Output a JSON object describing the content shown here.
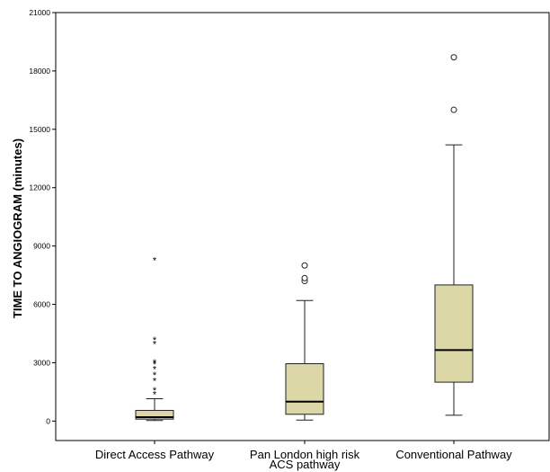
{
  "chart_data": {
    "type": "box",
    "title": "",
    "xlabel": "",
    "ylabel": "TIME TO ANGIOGRAM (minutes)",
    "ylim": [
      -1000,
      21000
    ],
    "yticks": [
      0,
      3000,
      6000,
      9000,
      12000,
      15000,
      18000,
      21000
    ],
    "grid": false,
    "colors": {
      "box_fill": "#dcd7a6",
      "stroke": "#222222",
      "plot_bg": "#ffffff"
    },
    "categories": [
      {
        "label": "Direct Access Pathway",
        "label_lines": [
          "Direct Access Pathway"
        ]
      },
      {
        "label": "Pan London high risk ACS pathway",
        "label_lines": [
          "Pan London high risk",
          "ACS pathway"
        ]
      },
      {
        "label": "Conventional Pathway",
        "label_lines": [
          "Conventional Pathway"
        ]
      }
    ],
    "boxes": [
      {
        "whisker_low": 30,
        "q1": 100,
        "median": 200,
        "q3": 550,
        "whisker_high": 1150,
        "outliers_circle": [],
        "outliers_star": [
          1400,
          1600,
          2100,
          2400,
          2700,
          2950,
          3050,
          4000,
          4200,
          8300
        ]
      },
      {
        "whisker_low": 50,
        "q1": 350,
        "median": 1000,
        "q3": 2950,
        "whisker_high": 6200,
        "outliers_circle": [
          7200,
          7350,
          8000
        ],
        "outliers_star": []
      },
      {
        "whisker_low": 300,
        "q1": 2000,
        "median": 3650,
        "q3": 7000,
        "whisker_high": 14200,
        "outliers_circle": [
          16000,
          18700
        ],
        "outliers_star": []
      }
    ]
  }
}
